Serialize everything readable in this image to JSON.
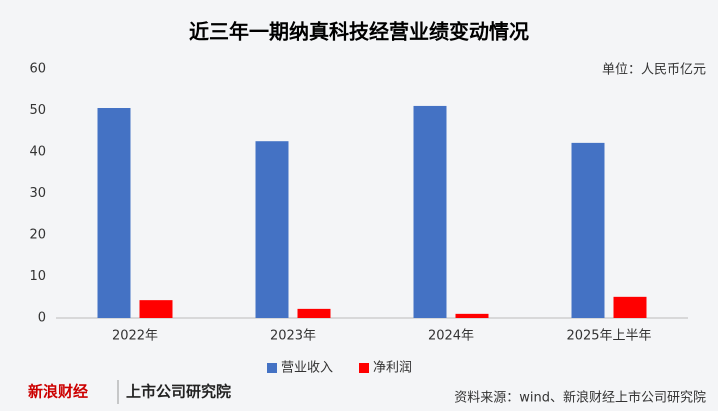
{
  "chart_data": {
    "type": "bar",
    "title": "近三年一期纳真科技经营业绩变动情况",
    "unit_note": "单位：人民币亿元",
    "source": "资料来源：wind、新浪财经上市公司研究院",
    "categories": [
      "2022年",
      "2023年",
      "2024年",
      "2025年上半年"
    ],
    "series": [
      {
        "name": "营业收入",
        "color": "#4472c4",
        "values": [
          50.6,
          42.6,
          51.1,
          42.2
        ]
      },
      {
        "name": "净利润",
        "color": "#ff0000",
        "values": [
          4.3,
          2.2,
          1.0,
          5.1
        ]
      }
    ],
    "ylim": [
      0,
      60
    ],
    "yticks": [
      0,
      10,
      20,
      30,
      40,
      50,
      60
    ],
    "grid": false,
    "legend": "bottom"
  },
  "branding": {
    "brand": "新浪财经",
    "institute": "上市公司研究院"
  }
}
